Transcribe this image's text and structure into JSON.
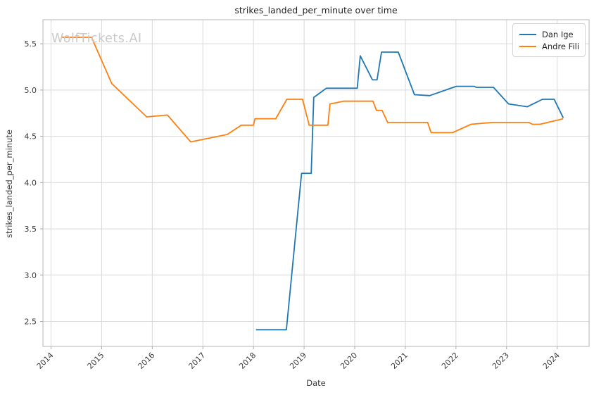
{
  "figure": {
    "watermark": "WolfTickets.AI"
  },
  "chart_data": {
    "type": "line",
    "title": "strikes_landed_per_minute over time",
    "xlabel": "Date",
    "ylabel": "strikes_landed_per_minute",
    "xlim": [
      2013.84,
      2024.63
    ],
    "ylim": [
      2.23,
      5.76
    ],
    "x_ticks": [
      2014,
      2015,
      2016,
      2017,
      2018,
      2019,
      2020,
      2021,
      2022,
      2023,
      2024
    ],
    "y_ticks": [
      2.5,
      3.0,
      3.5,
      4.0,
      4.5,
      5.0,
      5.5
    ],
    "grid": true,
    "legend_position": "top-right",
    "colors": {
      "grid": "#d9d9d9",
      "spine": "#c2c2c2",
      "tick": "#a8a8a8",
      "tick_label": "#3b3b3b"
    },
    "series": [
      {
        "name": "Dan Ige",
        "color": "#1f77b4",
        "points": [
          [
            2018.05,
            2.41
          ],
          [
            2018.65,
            2.41
          ],
          [
            2018.95,
            4.1
          ],
          [
            2019.14,
            4.1
          ],
          [
            2019.19,
            4.92
          ],
          [
            2019.44,
            5.02
          ],
          [
            2020.05,
            5.02
          ],
          [
            2020.11,
            5.37
          ],
          [
            2020.35,
            5.11
          ],
          [
            2020.44,
            5.11
          ],
          [
            2020.53,
            5.41
          ],
          [
            2020.86,
            5.41
          ],
          [
            2021.18,
            4.95
          ],
          [
            2021.48,
            4.94
          ],
          [
            2021.95,
            5.03
          ],
          [
            2022.01,
            5.04
          ],
          [
            2022.36,
            5.04
          ],
          [
            2022.4,
            5.03
          ],
          [
            2022.74,
            5.03
          ],
          [
            2023.04,
            4.85
          ],
          [
            2023.41,
            4.82
          ],
          [
            2023.71,
            4.9
          ],
          [
            2023.94,
            4.9
          ],
          [
            2024.12,
            4.7
          ]
        ]
      },
      {
        "name": "Andre Fili",
        "color": "#ff7f0e",
        "points": [
          [
            2014.22,
            5.57
          ],
          [
            2014.8,
            5.57
          ],
          [
            2015.2,
            5.07
          ],
          [
            2015.89,
            4.71
          ],
          [
            2016.3,
            4.73
          ],
          [
            2016.76,
            4.44
          ],
          [
            2017.48,
            4.52
          ],
          [
            2017.76,
            4.62
          ],
          [
            2018.0,
            4.62
          ],
          [
            2018.03,
            4.69
          ],
          [
            2018.44,
            4.69
          ],
          [
            2018.66,
            4.9
          ],
          [
            2018.97,
            4.9
          ],
          [
            2019.1,
            4.62
          ],
          [
            2019.47,
            4.62
          ],
          [
            2019.51,
            4.85
          ],
          [
            2019.78,
            4.88
          ],
          [
            2020.36,
            4.88
          ],
          [
            2020.43,
            4.78
          ],
          [
            2020.54,
            4.78
          ],
          [
            2020.65,
            4.65
          ],
          [
            2021.44,
            4.65
          ],
          [
            2021.51,
            4.54
          ],
          [
            2021.93,
            4.54
          ],
          [
            2022.3,
            4.63
          ],
          [
            2022.72,
            4.65
          ],
          [
            2023.44,
            4.65
          ],
          [
            2023.51,
            4.63
          ],
          [
            2023.66,
            4.63
          ],
          [
            2024.12,
            4.69
          ]
        ]
      }
    ]
  }
}
